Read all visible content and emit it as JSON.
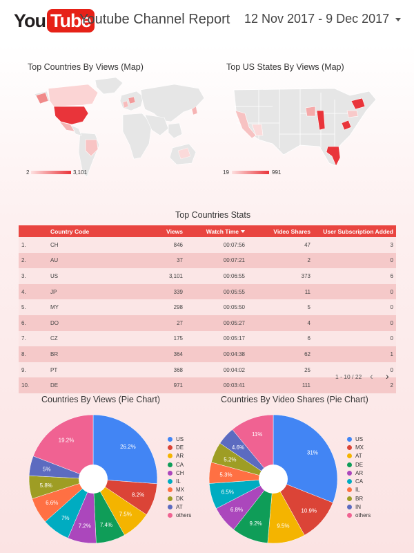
{
  "header": {
    "logo_you": "You",
    "logo_tube": "Tube",
    "title": "Youtube Channel Report",
    "date_range": "12 Nov 2017 - 9 Dec 2017"
  },
  "maps": {
    "countries": {
      "title": "Top Countries By Views (Map)",
      "min": "2",
      "max": "3,101"
    },
    "states": {
      "title": "Top US States By Views (Map)",
      "min": "19",
      "max": "991"
    }
  },
  "table": {
    "title": "Top Countries Stats",
    "columns": [
      "",
      "Country Code",
      "Views",
      "Watch Time",
      "Video Shares",
      "User Subscription Added"
    ],
    "rows": [
      [
        "1.",
        "CH",
        "846",
        "00:07:56",
        "47",
        "3"
      ],
      [
        "2.",
        "AU",
        "37",
        "00:07:21",
        "2",
        "0"
      ],
      [
        "3.",
        "US",
        "3,101",
        "00:06:55",
        "373",
        "6"
      ],
      [
        "4.",
        "JP",
        "339",
        "00:05:55",
        "11",
        "0"
      ],
      [
        "5.",
        "MY",
        "298",
        "00:05:50",
        "5",
        "0"
      ],
      [
        "6.",
        "DO",
        "27",
        "00:05:27",
        "4",
        "0"
      ],
      [
        "7.",
        "CZ",
        "175",
        "00:05:17",
        "6",
        "0"
      ],
      [
        "8.",
        "BR",
        "364",
        "00:04:38",
        "62",
        "1"
      ],
      [
        "9.",
        "PT",
        "368",
        "00:04:02",
        "25",
        "0"
      ],
      [
        "10.",
        "DE",
        "971",
        "00:03:41",
        "111",
        "2"
      ]
    ],
    "pagination": "1 - 10 / 22"
  },
  "chart_data": [
    {
      "type": "pie",
      "title": "Countries By Views (Pie Chart)",
      "labels": [
        "US",
        "DE",
        "AR",
        "CA",
        "CH",
        "IL",
        "MX",
        "DK",
        "AT",
        "others"
      ],
      "values": [
        26.2,
        8.2,
        7.5,
        7.4,
        7.2,
        7,
        6.6,
        5.8,
        5,
        19.2
      ],
      "data_labels": [
        "26.2%",
        "8.2%",
        "7.5%",
        "7.4%",
        "7.2%",
        "7%",
        "6.6%",
        "5.8%",
        "5%",
        "19.2%"
      ],
      "colors": [
        "#4285f4",
        "#db4437",
        "#f4b400",
        "#0f9d58",
        "#ab47bc",
        "#00acc1",
        "#ff7043",
        "#9e9d24",
        "#5c6bc0",
        "#f06292"
      ],
      "legend": "right"
    },
    {
      "type": "pie",
      "title": "Countries By Video Shares (Pie Chart)",
      "labels": [
        "US",
        "MX",
        "AT",
        "DE",
        "AR",
        "CA",
        "IL",
        "BR",
        "IN",
        "others"
      ],
      "values": [
        31,
        10.9,
        9.5,
        9.2,
        6.8,
        6.5,
        5.3,
        5.2,
        4.6,
        11
      ],
      "data_labels": [
        "31%",
        "10.9%",
        "9.5%",
        "9.2%",
        "6.8%",
        "6.5%",
        "5.3%",
        "5.2%",
        "4.6%",
        "11%"
      ],
      "colors": [
        "#4285f4",
        "#db4437",
        "#f4b400",
        "#0f9d58",
        "#ab47bc",
        "#00acc1",
        "#ff7043",
        "#9e9d24",
        "#5c6bc0",
        "#f06292"
      ],
      "legend": "right"
    }
  ]
}
